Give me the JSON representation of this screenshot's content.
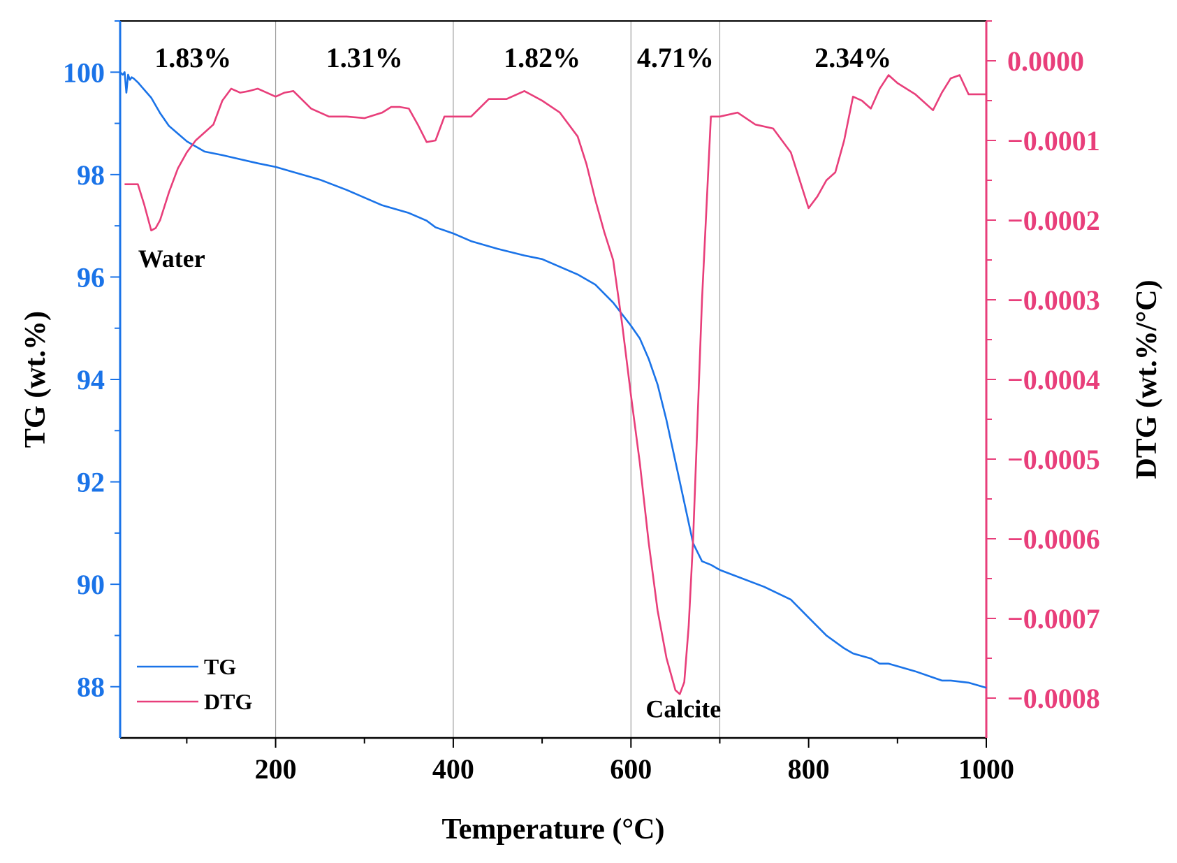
{
  "chart_data": {
    "type": "line",
    "xlabel": "Temperature (°C)",
    "ylabel_left": "TG (wt.%)",
    "ylabel_right": "DTG (wt.%/°C)",
    "xlim": [
      25,
      1000
    ],
    "ylim_left": [
      87,
      101
    ],
    "ylim_right": [
      -0.00085,
      5e-05
    ],
    "x_ticks": [
      200,
      400,
      600,
      800,
      1000
    ],
    "y_ticks_left": [
      88,
      90,
      92,
      94,
      96,
      98,
      100
    ],
    "y_ticks_right": [
      "0.0000",
      "−0.0001",
      "−0.0002",
      "−0.0003",
      "−0.0004",
      "−0.0005",
      "−0.0006",
      "−0.0007",
      "−0.0008"
    ],
    "y_tick_values_right": [
      0,
      -0.0001,
      -0.0002,
      -0.0003,
      -0.0004,
      -0.0005,
      -0.0006,
      -0.0007,
      -0.0008
    ],
    "vertical_lines": [
      200,
      400,
      600,
      700
    ],
    "regions": [
      {
        "label": "1.83%",
        "x": 107
      },
      {
        "label": "1.31%",
        "x": 300
      },
      {
        "label": "1.82%",
        "x": 500
      },
      {
        "label": "4.71%",
        "x": 650
      },
      {
        "label": "2.34%",
        "x": 850
      }
    ],
    "annotations": [
      {
        "text": "Water",
        "x": 83,
        "y_left": 96.2
      },
      {
        "text": "Calcite",
        "x": 659,
        "y_left": 87.4
      }
    ],
    "legend": {
      "position": "bottom-left",
      "entries": [
        "TG",
        "DTG"
      ]
    },
    "series": [
      {
        "name": "TG",
        "axis": "left",
        "color": "#1a73e8",
        "x": [
          25,
          28,
          30,
          32,
          34,
          36,
          38,
          40,
          45,
          50,
          60,
          70,
          80,
          100,
          120,
          140,
          160,
          180,
          200,
          220,
          250,
          280,
          300,
          320,
          350,
          370,
          380,
          400,
          420,
          450,
          480,
          500,
          520,
          540,
          560,
          580,
          600,
          610,
          620,
          630,
          640,
          650,
          660,
          670,
          680,
          690,
          700,
          750,
          780,
          800,
          820,
          840,
          850,
          860,
          870,
          880,
          890,
          900,
          920,
          940,
          950,
          960,
          980,
          1000
        ],
        "values": [
          100.0,
          99.95,
          100.0,
          99.6,
          99.95,
          99.85,
          99.9,
          99.88,
          99.8,
          99.7,
          99.5,
          99.2,
          98.95,
          98.65,
          98.45,
          98.38,
          98.3,
          98.22,
          98.15,
          98.05,
          97.9,
          97.7,
          97.55,
          97.4,
          97.25,
          97.1,
          96.97,
          96.85,
          96.7,
          96.55,
          96.42,
          96.35,
          96.2,
          96.05,
          95.85,
          95.5,
          95.05,
          94.8,
          94.4,
          93.9,
          93.2,
          92.4,
          91.6,
          90.8,
          90.45,
          90.38,
          90.28,
          89.95,
          89.7,
          89.35,
          89.0,
          88.75,
          88.65,
          88.6,
          88.55,
          88.45,
          88.45,
          88.4,
          88.3,
          88.18,
          88.12,
          88.12,
          88.08,
          87.98
        ]
      },
      {
        "name": "DTG",
        "axis": "right",
        "color": "#e83e7a",
        "x": [
          30,
          45,
          52,
          60,
          65,
          70,
          80,
          90,
          100,
          110,
          120,
          130,
          140,
          150,
          160,
          170,
          180,
          190,
          200,
          210,
          220,
          240,
          260,
          280,
          300,
          320,
          330,
          340,
          350,
          360,
          370,
          380,
          390,
          400,
          420,
          440,
          460,
          480,
          500,
          520,
          540,
          550,
          560,
          570,
          580,
          590,
          600,
          610,
          620,
          630,
          640,
          650,
          655,
          660,
          665,
          670,
          680,
          690,
          700,
          720,
          740,
          760,
          780,
          800,
          810,
          820,
          830,
          840,
          850,
          860,
          870,
          880,
          890,
          900,
          920,
          940,
          950,
          960,
          970,
          980,
          1000
        ],
        "values": [
          -0.000155,
          -0.000155,
          -0.00018,
          -0.000213,
          -0.00021,
          -0.0002,
          -0.000165,
          -0.000135,
          -0.000115,
          -0.0001,
          -9e-05,
          -8e-05,
          -5e-05,
          -3.5e-05,
          -4e-05,
          -3.8e-05,
          -3.5e-05,
          -4e-05,
          -4.5e-05,
          -4e-05,
          -3.8e-05,
          -6e-05,
          -7e-05,
          -7e-05,
          -7.2e-05,
          -6.5e-05,
          -5.8e-05,
          -5.8e-05,
          -6e-05,
          -8e-05,
          -0.000102,
          -0.0001,
          -7e-05,
          -7e-05,
          -7e-05,
          -4.8e-05,
          -4.8e-05,
          -3.8e-05,
          -5e-05,
          -6.5e-05,
          -9.5e-05,
          -0.00013,
          -0.000175,
          -0.000215,
          -0.00025,
          -0.00033,
          -0.00042,
          -0.000505,
          -0.000605,
          -0.00069,
          -0.00075,
          -0.00079,
          -0.000795,
          -0.00078,
          -0.00071,
          -0.0006,
          -0.0003,
          -7e-05,
          -7e-05,
          -6.5e-05,
          -8e-05,
          -8.5e-05,
          -0.000115,
          -0.000185,
          -0.00017,
          -0.00015,
          -0.00014,
          -0.0001,
          -4.5e-05,
          -5e-05,
          -6e-05,
          -3.5e-05,
          -1.8e-05,
          -2.8e-05,
          -4.2e-05,
          -6.2e-05,
          -4e-05,
          -2.2e-05,
          -1.8e-05,
          -4.2e-05,
          -4.2e-05
        ]
      }
    ]
  }
}
